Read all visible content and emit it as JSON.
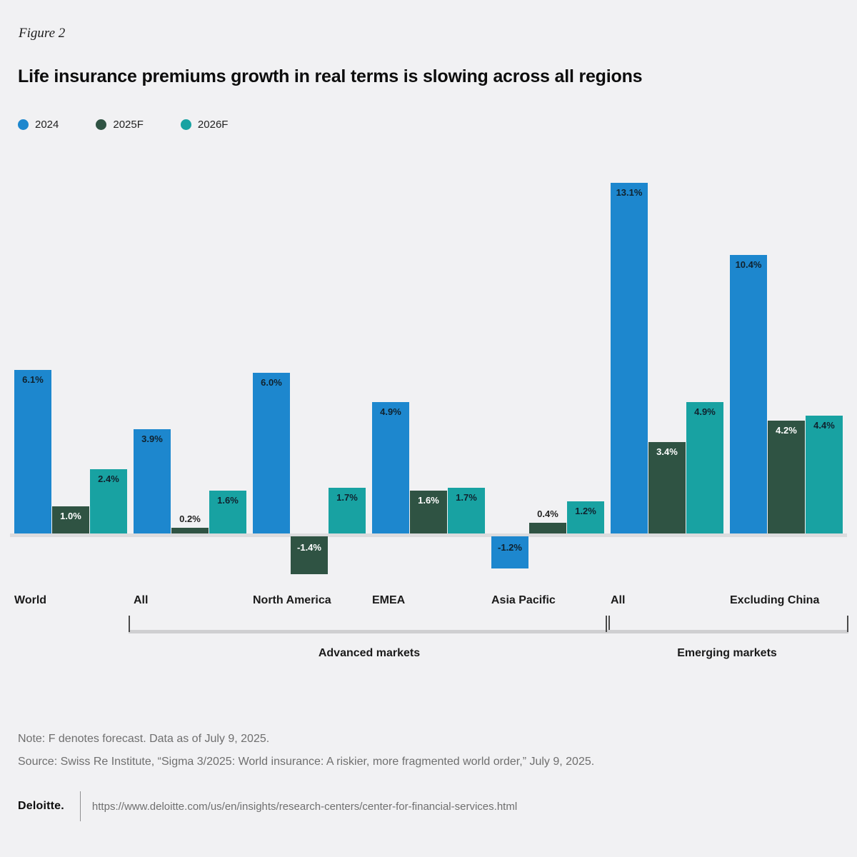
{
  "figure_label": "Figure 2",
  "title": "Life insurance premiums growth in real terms is slowing across all regions",
  "legend": [
    {
      "label": "2024",
      "color": "#1d87ce"
    },
    {
      "label": "2025F",
      "color": "#2f5343"
    },
    {
      "label": "2026F",
      "color": "#18a2a2"
    }
  ],
  "chart_data": {
    "type": "bar",
    "title": "Life insurance premiums growth in real terms is slowing across all regions",
    "unit": "%",
    "series_names": [
      "2024",
      "2025F",
      "2026F"
    ],
    "series_colors": [
      "#1d87ce",
      "#2f5343",
      "#18a2a2"
    ],
    "groups": [
      {
        "label": "World",
        "section": null,
        "values": [
          6.1,
          1.0,
          2.4
        ]
      },
      {
        "label": "All",
        "section": "Advanced markets",
        "values": [
          3.9,
          0.2,
          1.6
        ]
      },
      {
        "label": "North America",
        "section": "Advanced markets",
        "values": [
          6.0,
          -1.4,
          1.7
        ]
      },
      {
        "label": "EMEA",
        "section": "Advanced markets",
        "values": [
          4.9,
          1.6,
          1.7
        ]
      },
      {
        "label": "Asia Pacific",
        "section": "Advanced markets",
        "values": [
          -1.2,
          0.4,
          1.2
        ]
      },
      {
        "label": "All",
        "section": "Emerging markets",
        "values": [
          13.1,
          3.4,
          4.9
        ]
      },
      {
        "label": "Excluding China",
        "section": "Emerging markets",
        "values": [
          10.4,
          4.2,
          4.4
        ]
      }
    ],
    "sections": [
      {
        "label": "Advanced markets",
        "from": 1,
        "to": 4
      },
      {
        "label": "Emerging markets",
        "from": 5,
        "to": 6
      }
    ],
    "ylim": [
      -2,
      14
    ],
    "grid": false,
    "legend_position": "top-left",
    "value_labels": "on-bars"
  },
  "notes": {
    "note": "Note: F denotes forecast. Data as of July 9, 2025.",
    "source": "Source: Swiss Re Institute, “Sigma 3/2025: World insurance: A riskier, more fragmented world order,” July 9, 2025."
  },
  "footer": {
    "brand": "Deloitte.",
    "url": "https://www.deloitte.com/us/en/insights/research-centers/center-for-financial-services.html"
  },
  "colors": {
    "background": "#f1f1f3",
    "baseline": "#dcdcde",
    "bar_label_dark": "#10222e",
    "bar_label_light": "#ffffff",
    "note_text": "#6f6f6f"
  }
}
